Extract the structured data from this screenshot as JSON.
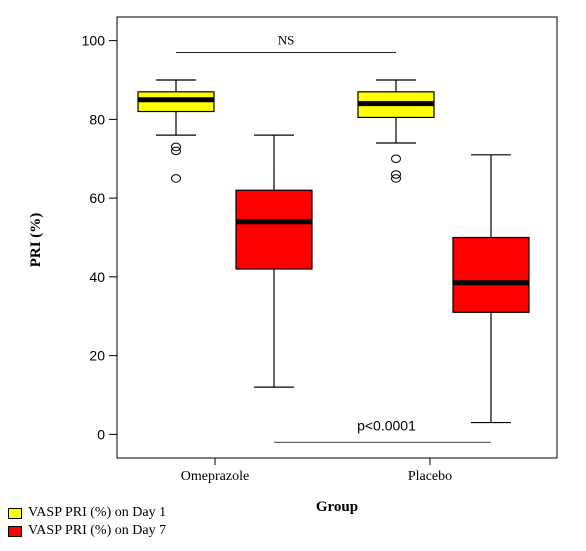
{
  "chart_data": {
    "type": "boxplot",
    "title": "",
    "xlabel": "Group",
    "ylabel": "PRI  (%)",
    "ylim": [
      -6,
      106
    ],
    "yticks": [
      0,
      20,
      40,
      60,
      80,
      100
    ],
    "categories": [
      "Omeprazole",
      "Placebo"
    ],
    "legend_position": "bottom-left",
    "series": [
      {
        "name": "VASP PRI (%) on Day 1",
        "color": "#ffff00",
        "boxes": [
          {
            "category": "Omeprazole",
            "whisker_low": 76,
            "q1": 82,
            "median": 85,
            "q3": 87,
            "whisker_high": 90,
            "outliers": [
              72,
              73,
              65
            ]
          },
          {
            "category": "Placebo",
            "whisker_low": 74,
            "q1": 80.5,
            "median": 84,
            "q3": 87,
            "whisker_high": 90,
            "outliers": [
              70,
              66,
              65
            ]
          }
        ]
      },
      {
        "name": "VASP PRI (%) on Day 7",
        "color": "#ff0000",
        "boxes": [
          {
            "category": "Omeprazole",
            "whisker_low": 12,
            "q1": 42,
            "median": 54,
            "q3": 62,
            "whisker_high": 76,
            "outliers": []
          },
          {
            "category": "Placebo",
            "whisker_low": 3,
            "q1": 31,
            "median": 38.5,
            "q3": 50,
            "whisker_high": 71,
            "outliers": []
          }
        ]
      }
    ],
    "annotations": [
      {
        "text": "NS",
        "between": "Day 1 boxes",
        "y": 97
      },
      {
        "text": "p<0.0001",
        "between": "Day 7 boxes",
        "y": -2
      }
    ]
  }
}
